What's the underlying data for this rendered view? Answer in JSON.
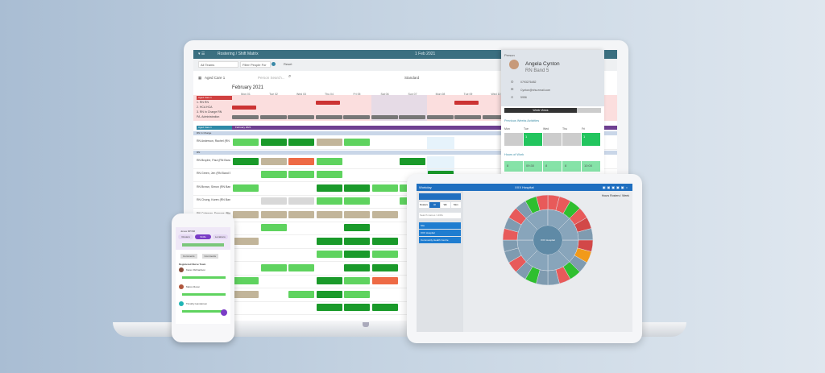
{
  "laptop": {
    "breadcrumb": "Rostering / Shift Matrix",
    "date": "1 Feb 2021",
    "filter": {
      "team": "All Teams",
      "person": "Filter People For",
      "reset": "Reset"
    },
    "toolbar": {
      "unit": "Aged Care 1",
      "search_placeholder": "Person Search...",
      "view": "Standard"
    },
    "month": "February 2021",
    "days": [
      "Mon 01",
      "Tue 02",
      "Wed 03",
      "Thu 04",
      "Fri 05",
      "Sat 06",
      "Sun 07",
      "Mon 08",
      "Tue 09",
      "Wed 10"
    ],
    "summary_header": "Aged Care 1",
    "summary_rows": [
      "1. RN RN",
      "2. HCA HCA",
      "3. RN In Charge RN",
      "PA. Administration"
    ],
    "group_bar": "Aged Care 1",
    "purple_bar": "February 2021",
    "sections": [
      {
        "title": "RN In Charge",
        "rows": [
          {
            "name": "RN Anderson, Rachel (RN Band 7)",
            "shifts": [
              [
                0,
                "#5fd35f"
              ],
              [
                1,
                "#1a9a2a"
              ],
              [
                2,
                "#1a9a2a"
              ],
              [
                3,
                "#c2b59a"
              ],
              [
                4,
                "#5fd35f"
              ]
            ]
          }
        ]
      },
      {
        "title": "RN",
        "rows": [
          {
            "name": "RN Brophe, Paul (RN Band 5)",
            "shifts": [
              [
                0,
                "#1a9a2a"
              ],
              [
                1,
                "#c2b59a"
              ],
              [
                2,
                "#ee6a45"
              ],
              [
                3,
                "#5fd35f"
              ],
              [
                6,
                "#1a9a2a"
              ]
            ]
          },
          {
            "name": "RN Green, Jen (RN Band 5)",
            "shifts": [
              [
                1,
                "#5fd35f"
              ],
              [
                2,
                "#5fd35f"
              ],
              [
                3,
                "#5fd35f"
              ],
              [
                7,
                "#1a9a2a"
              ]
            ]
          },
          {
            "name": "RN Brown, Simon (RN Band 5)",
            "shifts": [
              [
                0,
                "#5fd35f"
              ],
              [
                3,
                "#1a9a2a"
              ],
              [
                4,
                "#1a9a2a"
              ],
              [
                5,
                "#5fd35f"
              ],
              [
                6,
                "#5fd35f"
              ]
            ]
          },
          {
            "name": "RN Chong, Karen (RN Band 5)",
            "shifts": [
              [
                1,
                "#d8d8d8"
              ],
              [
                2,
                "#d8d8d8"
              ],
              [
                3,
                "#5fd35f"
              ],
              [
                4,
                "#5fd35f"
              ],
              [
                6,
                "#5fd35f"
              ]
            ]
          },
          {
            "name": "RN Coleman, Frances (RN Band 5)",
            "shifts": [
              [
                0,
                "#c2b59a"
              ],
              [
                1,
                "#c2b59a"
              ],
              [
                2,
                "#c2b59a"
              ],
              [
                3,
                "#c2b59a"
              ],
              [
                4,
                "#c2b59a"
              ],
              [
                5,
                "#c2b59a"
              ]
            ]
          },
          {
            "name": "RN Coleman, Angela (RN Band 5)",
            "shifts": [
              [
                1,
                "#5fd35f"
              ],
              [
                4,
                "#1a9a2a"
              ]
            ]
          },
          {
            "name": "RN Daniels, Mark",
            "shifts": [
              [
                0,
                "#c2b59a"
              ],
              [
                3,
                "#1a9a2a"
              ],
              [
                4,
                "#1a9a2a"
              ],
              [
                5,
                "#1a9a2a"
              ]
            ]
          },
          {
            "name": "RN Evans, Lisa",
            "shifts": [
              [
                3,
                "#5fd35f"
              ],
              [
                4,
                "#1a9a2a"
              ],
              [
                5,
                "#5fd35f"
              ]
            ]
          },
          {
            "name": "RN Foster, Sam",
            "shifts": [
              [
                1,
                "#5fd35f"
              ],
              [
                2,
                "#5fd35f"
              ],
              [
                4,
                "#1a9a2a"
              ],
              [
                5,
                "#1a9a2a"
              ]
            ]
          },
          {
            "name": "RN Grant, Tom",
            "shifts": [
              [
                0,
                "#5fd35f"
              ],
              [
                3,
                "#1a9a2a"
              ],
              [
                4,
                "#5fd35f"
              ],
              [
                5,
                "#ee6a45"
              ]
            ]
          },
          {
            "name": "RN Hall, Amy",
            "shifts": [
              [
                0,
                "#c2b59a"
              ],
              [
                2,
                "#5fd35f"
              ],
              [
                3,
                "#1a9a2a"
              ],
              [
                4,
                "#5fd35f"
              ]
            ]
          },
          {
            "name": "RN Irwin, Ben",
            "shifts": [
              [
                3,
                "#1a9a2a"
              ],
              [
                4,
                "#1a9a2a"
              ],
              [
                5,
                "#1a9a2a"
              ]
            ]
          }
        ]
      }
    ]
  },
  "panel": {
    "section": "Person",
    "name": "Angela Cynton",
    "role": "RN Band 5",
    "phone": "0793276482",
    "email": "Cynton@nhs.email.com",
    "id": "5956",
    "button": "Week Views",
    "activities_title": "Previous Weeks Activities",
    "weekdays": [
      "Mon",
      "Tue",
      "Wed",
      "Thu",
      "Fri"
    ],
    "activities": [
      "",
      "1",
      "",
      "",
      "1"
    ],
    "hours_title": "Hours of Work",
    "hours": [
      "8",
      "09:30",
      "8",
      "8",
      "10:00"
    ]
  },
  "tablet": {
    "brand": "Workday",
    "title": "XXX Hospital",
    "subtitle": "Hours Rosters / Week",
    "tabs": [
      "Rosters",
      "All",
      "Wk",
      "Mon"
    ],
    "search": "Search names / shifts",
    "menu": [
      "Site",
      "XXX Hospital",
      "Community Health Centre"
    ],
    "chart_center": "XXX Hospital"
  },
  "phone": {
    "title": "Jones RP/SR",
    "tabs": [
      "Rosters",
      "Shifts",
      "Locations"
    ],
    "buttons": [
      "Comments",
      "Comments"
    ],
    "list_title": "Registered Nurse Team",
    "people": [
      "Karen Richardson",
      "Marco Rossi",
      "Timothy Henderson"
    ]
  }
}
